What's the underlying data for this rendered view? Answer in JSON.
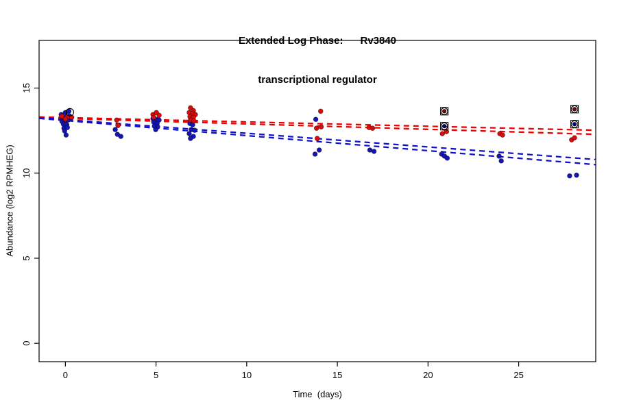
{
  "page": {
    "background": "#ffffff"
  },
  "chart_data": {
    "type": "scatter",
    "title_line1": "Extended Log Phase:      Rv3840",
    "title_line2": "transcriptional regulator",
    "xlabel": "Time  (days)",
    "ylabel": "Abundance  (log2 RPMHEG)",
    "xlim": [
      -1.45,
      29.25
    ],
    "ylim": [
      -1.08,
      17.8
    ],
    "xticks": [
      0,
      5,
      10,
      15,
      20,
      25
    ],
    "yticks": [
      0,
      5,
      10,
      15
    ],
    "grid": false,
    "legend": null,
    "colors": {
      "red_point": "#dd0a0a",
      "blue_point": "#1515b5",
      "red_line": "#ee0000",
      "blue_line": "#1111cc",
      "marker_outline": "#000000",
      "special_red": "#8b0000",
      "special_blue": "#00008b"
    },
    "series": [
      {
        "name": "blue-condition",
        "color_key": "blue_point",
        "points": [
          [
            -0.23,
            13.44
          ],
          [
            0.0,
            13.56
          ],
          [
            0.19,
            13.64
          ],
          [
            -0.15,
            13.24
          ],
          [
            0.04,
            13.32
          ],
          [
            0.23,
            13.36
          ],
          [
            -0.19,
            13.04
          ],
          [
            0.0,
            13.08
          ],
          [
            0.15,
            13.12
          ],
          [
            -0.11,
            12.88
          ],
          [
            0.08,
            12.84
          ],
          [
            -0.08,
            12.64
          ],
          [
            0.11,
            12.68
          ],
          [
            -0.04,
            12.48
          ],
          [
            0.04,
            12.24
          ],
          [
            2.75,
            12.56
          ],
          [
            2.87,
            12.28
          ],
          [
            3.06,
            12.16
          ],
          [
            4.83,
            13.2
          ],
          [
            5.02,
            13.16
          ],
          [
            5.17,
            13.12
          ],
          [
            4.87,
            13.0
          ],
          [
            5.06,
            12.92
          ],
          [
            4.91,
            12.76
          ],
          [
            5.09,
            12.72
          ],
          [
            4.98,
            12.56
          ],
          [
            6.98,
            13.2
          ],
          [
            6.87,
            12.92
          ],
          [
            7.02,
            12.84
          ],
          [
            6.94,
            12.56
          ],
          [
            7.13,
            12.52
          ],
          [
            6.83,
            12.32
          ],
          [
            7.06,
            12.16
          ],
          [
            6.9,
            12.04
          ],
          [
            13.81,
            13.16
          ],
          [
            14.0,
            11.36
          ],
          [
            13.77,
            11.12
          ],
          [
            16.79,
            11.36
          ],
          [
            17.02,
            11.28
          ],
          [
            20.75,
            11.12
          ],
          [
            20.91,
            11.0
          ],
          [
            21.06,
            10.88
          ],
          [
            23.92,
            11.0
          ],
          [
            24.04,
            10.72
          ],
          [
            27.81,
            9.84
          ],
          [
            28.19,
            9.88
          ]
        ]
      },
      {
        "name": "red-condition",
        "color_key": "red_point",
        "points": [
          [
            -0.2,
            13.35
          ],
          [
            0.1,
            13.3
          ],
          [
            0.35,
            13.28
          ],
          [
            0.0,
            13.18
          ],
          [
            2.83,
            13.12
          ],
          [
            2.9,
            12.8
          ],
          [
            4.83,
            13.44
          ],
          [
            5.02,
            13.56
          ],
          [
            5.17,
            13.4
          ],
          [
            4.87,
            13.28
          ],
          [
            6.9,
            13.84
          ],
          [
            7.06,
            13.68
          ],
          [
            6.83,
            13.56
          ],
          [
            7.02,
            13.52
          ],
          [
            7.17,
            13.44
          ],
          [
            6.87,
            13.32
          ],
          [
            7.06,
            13.28
          ],
          [
            6.9,
            13.12
          ],
          [
            7.09,
            13.08
          ],
          [
            14.08,
            13.64
          ],
          [
            13.85,
            12.64
          ],
          [
            14.11,
            12.72
          ],
          [
            13.89,
            12.04
          ],
          [
            16.75,
            12.68
          ],
          [
            16.94,
            12.64
          ],
          [
            20.79,
            12.32
          ],
          [
            21.02,
            12.44
          ],
          [
            23.96,
            12.32
          ],
          [
            24.11,
            12.24
          ],
          [
            27.92,
            11.96
          ],
          [
            28.08,
            12.08
          ]
        ]
      }
    ],
    "special_points": [
      {
        "x": 20.9,
        "y": 13.64,
        "color_key": "special_red"
      },
      {
        "x": 20.9,
        "y": 12.76,
        "color_key": "special_blue"
      },
      {
        "x": 28.08,
        "y": 13.76,
        "color_key": "special_red"
      },
      {
        "x": 28.08,
        "y": 12.88,
        "color_key": "special_blue"
      }
    ],
    "circled_points": [
      {
        "x": 0.25,
        "y": 13.58
      }
    ],
    "trend_lines": [
      {
        "color_key": "red_line",
        "x1": -1.45,
        "y1": 13.3,
        "x2": 29.25,
        "y2": 12.52
      },
      {
        "color_key": "red_line",
        "x1": -1.45,
        "y1": 13.26,
        "x2": 29.25,
        "y2": 12.28
      },
      {
        "color_key": "blue_line",
        "x1": -1.45,
        "y1": 13.26,
        "x2": 29.25,
        "y2": 10.8
      },
      {
        "color_key": "blue_line",
        "x1": -1.45,
        "y1": 13.22,
        "x2": 29.25,
        "y2": 10.5
      }
    ]
  }
}
